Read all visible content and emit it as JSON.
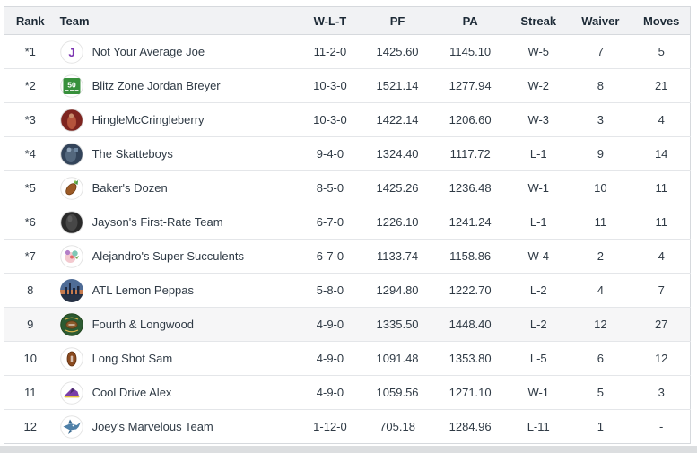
{
  "colors": {
    "header_bg": "#f1f2f4",
    "header_text": "#1d2a36",
    "body_text": "#2f3a45",
    "table_border": "#d6d9dd",
    "row_border": "#e4e6e9",
    "highlight_row_bg": "#f6f6f7",
    "scrollbar_track": "#dcdee0",
    "accent_purple": "#7c35b1",
    "accent_green": "#37903b"
  },
  "table": {
    "columns": [
      {
        "id": "rank",
        "label": "Rank"
      },
      {
        "id": "team",
        "label": "Team"
      },
      {
        "id": "wlt",
        "label": "W-L-T"
      },
      {
        "id": "pf",
        "label": "PF"
      },
      {
        "id": "pa",
        "label": "PA"
      },
      {
        "id": "streak",
        "label": "Streak"
      },
      {
        "id": "waiver",
        "label": "Waiver"
      },
      {
        "id": "moves",
        "label": "Moves"
      }
    ],
    "rows": [
      {
        "rank": "*1",
        "team": "Not Your Average Joe",
        "avatar": {
          "name": "letter-j-avatar",
          "kind": "letterJ"
        },
        "wlt": "11-2-0",
        "pf": "1425.60",
        "pa": "1145.10",
        "streak": "W-5",
        "waiver": "7",
        "moves": "5",
        "highlighted": false
      },
      {
        "rank": "*2",
        "team": "Blitz Zone Jordan Breyer",
        "avatar": {
          "name": "fifty-yard-marker-avatar",
          "kind": "fiftyMarker"
        },
        "wlt": "10-3-0",
        "pf": "1521.14",
        "pa": "1277.94",
        "streak": "W-2",
        "waiver": "8",
        "moves": "21",
        "highlighted": false
      },
      {
        "rank": "*3",
        "team": "HingleMcCringleberry",
        "avatar": {
          "name": "red-photo-avatar",
          "kind": "redPhoto"
        },
        "wlt": "10-3-0",
        "pf": "1422.14",
        "pa": "1206.60",
        "streak": "W-3",
        "waiver": "3",
        "moves": "4",
        "highlighted": false
      },
      {
        "rank": "*4",
        "team": "The Skatteboys",
        "avatar": {
          "name": "navy-photo-avatar",
          "kind": "navyPhoto"
        },
        "wlt": "9-4-0",
        "pf": "1324.40",
        "pa": "1117.72",
        "streak": "L-1",
        "waiver": "9",
        "moves": "14",
        "highlighted": false
      },
      {
        "rank": "*5",
        "team": "Baker's Dozen",
        "avatar": {
          "name": "football-sprout-avatar",
          "kind": "footballSprout"
        },
        "wlt": "8-5-0",
        "pf": "1425.26",
        "pa": "1236.48",
        "streak": "W-1",
        "waiver": "10",
        "moves": "11",
        "highlighted": false
      },
      {
        "rank": "*6",
        "team": "Jayson's First-Rate Team",
        "avatar": {
          "name": "black-photo-avatar",
          "kind": "blackPhoto"
        },
        "wlt": "6-7-0",
        "pf": "1226.10",
        "pa": "1241.24",
        "streak": "L-1",
        "waiver": "11",
        "moves": "11",
        "highlighted": false
      },
      {
        "rank": "*7",
        "team": "Alejandro's Super Succulents",
        "avatar": {
          "name": "succulent-avatar",
          "kind": "succulent"
        },
        "wlt": "6-7-0",
        "pf": "1133.74",
        "pa": "1158.86",
        "streak": "W-4",
        "waiver": "2",
        "moves": "4",
        "highlighted": false
      },
      {
        "rank": "8",
        "team": "ATL Lemon Peppas",
        "avatar": {
          "name": "city-skyline-avatar",
          "kind": "cityPhoto"
        },
        "wlt": "5-8-0",
        "pf": "1294.80",
        "pa": "1222.70",
        "streak": "L-2",
        "waiver": "4",
        "moves": "7",
        "highlighted": false
      },
      {
        "rank": "9",
        "team": "Fourth & Longwood",
        "avatar": {
          "name": "green-football-logo-avatar",
          "kind": "greenLogo"
        },
        "wlt": "4-9-0",
        "pf": "1335.50",
        "pa": "1448.40",
        "streak": "L-2",
        "waiver": "12",
        "moves": "27",
        "highlighted": true
      },
      {
        "rank": "10",
        "team": "Long Shot Sam",
        "avatar": {
          "name": "football-avatar",
          "kind": "football"
        },
        "wlt": "4-9-0",
        "pf": "1091.48",
        "pa": "1353.80",
        "streak": "L-5",
        "waiver": "6",
        "moves": "12",
        "highlighted": false
      },
      {
        "rank": "11",
        "team": "Cool Drive Alex",
        "avatar": {
          "name": "purple-sneaker-avatar",
          "kind": "sneaker"
        },
        "wlt": "4-9-0",
        "pf": "1059.56",
        "pa": "1271.10",
        "streak": "W-1",
        "waiver": "5",
        "moves": "3",
        "highlighted": false
      },
      {
        "rank": "12",
        "team": "Joey's Marvelous Team",
        "avatar": {
          "name": "blue-marlin-avatar",
          "kind": "marlin"
        },
        "wlt": "1-12-0",
        "pf": "705.18",
        "pa": "1284.96",
        "streak": "L-11",
        "waiver": "1",
        "moves": "-",
        "highlighted": false
      }
    ]
  }
}
